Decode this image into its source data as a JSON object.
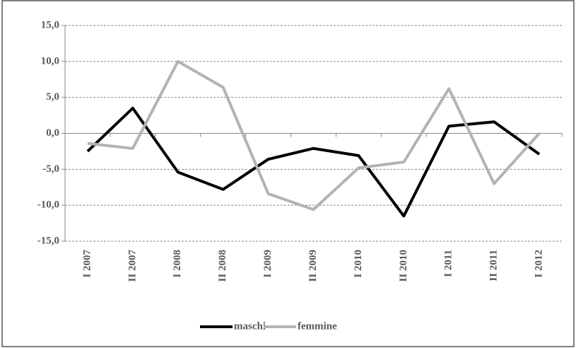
{
  "chart_data": {
    "type": "line",
    "categories": [
      "I 2007",
      "II 2007",
      "I 2008",
      "II 2008",
      "I 2009",
      "II 2009",
      "I 2010",
      "II 2010",
      "I 2011",
      "II 2011",
      "I 2012"
    ],
    "series": [
      {
        "name": "maschi",
        "color": "#000000",
        "values": [
          -2.5,
          3.5,
          -5.4,
          -7.8,
          -3.6,
          -2.1,
          -3.1,
          -11.5,
          1.0,
          1.6,
          -2.9
        ]
      },
      {
        "name": "femmine",
        "color": "#b3b3b3",
        "values": [
          -1.4,
          -2.1,
          10.0,
          6.4,
          -8.4,
          -10.6,
          -4.8,
          -4.0,
          6.2,
          -7.0,
          0.0
        ]
      }
    ],
    "ylim": [
      -15,
      15
    ],
    "yticks": [
      {
        "value": -15,
        "label": "-15,0"
      },
      {
        "value": -10,
        "label": "-10,0"
      },
      {
        "value": -5,
        "label": "-5,0"
      },
      {
        "value": 0,
        "label": "0,0"
      },
      {
        "value": 5,
        "label": "5,0"
      },
      {
        "value": 10,
        "label": "10,0"
      },
      {
        "value": 15,
        "label": "15,0"
      }
    ],
    "grid": true,
    "legend": "bottom"
  }
}
